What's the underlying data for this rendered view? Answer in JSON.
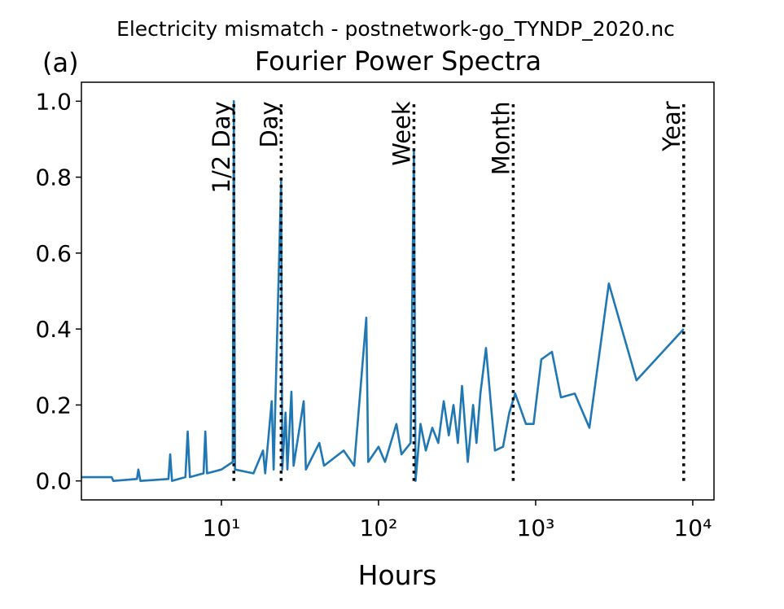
{
  "chart_data": {
    "type": "line",
    "suptitle": "Electricity mismatch - postnetwork-go_TYNDP_2020.nc",
    "title": "Fourier Power Spectra",
    "panel_label": "(a)",
    "xlabel": "Hours",
    "xscale": "log",
    "color": "#1f77b4",
    "x": [
      1,
      2,
      2.05,
      2.9,
      2.96,
      3.05,
      4.6,
      4.72,
      4.85,
      5.9,
      6.1,
      6.3,
      7.7,
      7.9,
      8.1,
      10,
      11.8,
      12,
      12.2,
      16,
      18.4,
      19,
      20.9,
      21.5,
      24,
      24.4,
      25.6,
      26.3,
      27.9,
      28.8,
      33.4,
      34.5,
      42,
      45,
      60,
      70,
      83.6,
      86,
      100,
      110,
      130,
      140,
      160,
      168,
      172,
      185,
      200,
      220,
      240,
      260,
      280,
      300,
      320,
      340,
      370,
      400,
      420,
      445,
      483,
      551,
      620,
      680,
      741,
      867,
      970,
      1087,
      1270,
      1449,
      1775,
      2198,
      2924,
      4385,
      8760
    ],
    "values": [
      0.01,
      0.01,
      0,
      0.005,
      0.03,
      0,
      0.005,
      0.07,
      0,
      0.01,
      0.13,
      0.01,
      0.02,
      0.13,
      0.02,
      0.03,
      0.05,
      1.0,
      0.03,
      0.02,
      0.08,
      0.02,
      0.21,
      0.03,
      0.79,
      0.03,
      0.18,
      0.03,
      0.235,
      0.04,
      0.21,
      0.03,
      0.1,
      0.04,
      0.08,
      0.04,
      0.43,
      0.05,
      0.09,
      0.05,
      0.15,
      0.07,
      0.1,
      0.87,
      0,
      0.15,
      0.08,
      0.14,
      0.1,
      0.21,
      0.12,
      0.2,
      0.1,
      0.25,
      0.05,
      0.2,
      0.1,
      0.23,
      0.35,
      0.08,
      0.09,
      0.18,
      0.23,
      0.15,
      0.15,
      0.32,
      0.34,
      0.22,
      0.23,
      0.14,
      0.52,
      0.265,
      0.4
    ],
    "xlim": [
      1.285,
      13650
    ],
    "xticks": [
      {
        "value": 10,
        "label": "10¹"
      },
      {
        "value": 100,
        "label": "10²"
      },
      {
        "value": 1000,
        "label": "10³"
      },
      {
        "value": 10000,
        "label": "10⁴"
      }
    ],
    "ylim": [
      -0.05,
      1.05
    ],
    "yticks": [
      {
        "value": 0,
        "label": "0.0"
      },
      0.2,
      0.4,
      0.6,
      0.8,
      {
        "value": 1,
        "label": "1.0"
      }
    ],
    "annotations": [
      {
        "label": "1/2 Day",
        "x": 12
      },
      {
        "label": "Day",
        "x": 24
      },
      {
        "label": "Week",
        "x": 168
      },
      {
        "label": "Month",
        "x": 720
      },
      {
        "label": "Year",
        "x": 8760
      }
    ]
  }
}
